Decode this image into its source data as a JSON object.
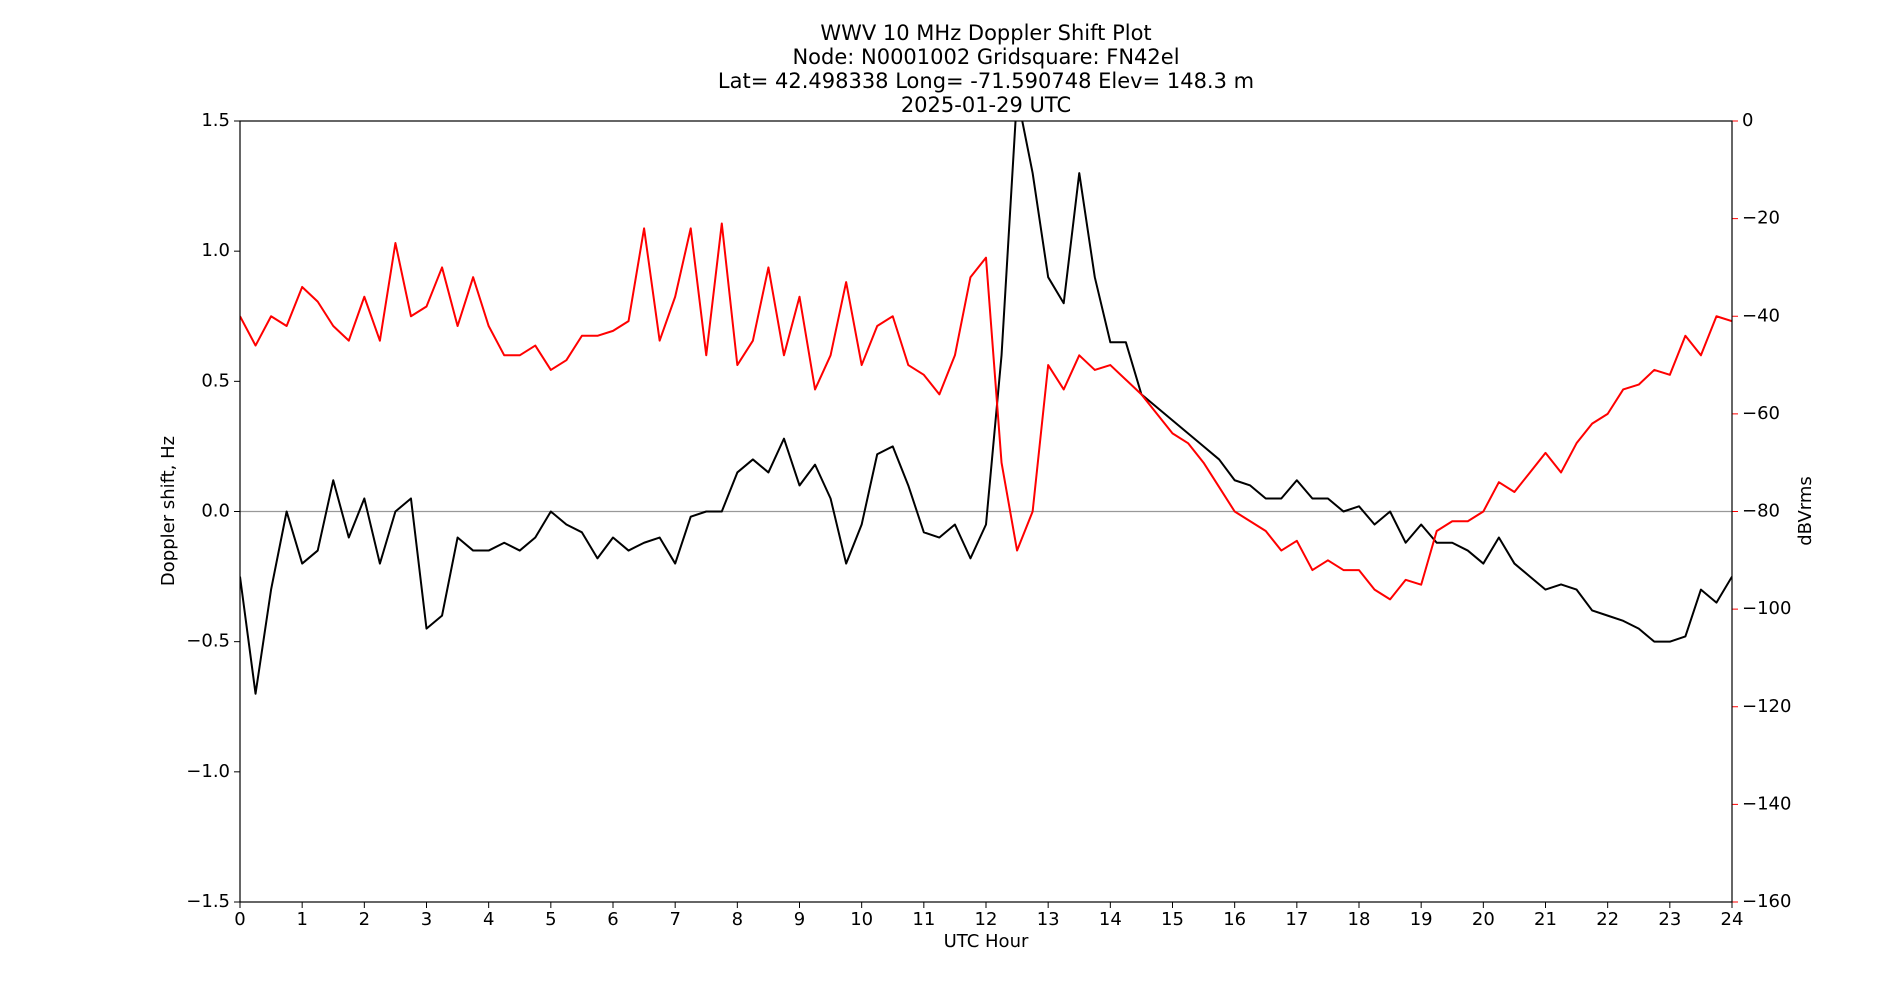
{
  "chart_data": {
    "type": "line",
    "title": "WWV 10 MHz Doppler Shift Plot",
    "subtitle_lines": [
      "Node:  N0001002     Gridsquare:  FN42el",
      "Lat= 42.498338    Long= -71.590748    Elev= 148.3 m",
      "2025-01-29  UTC"
    ],
    "xlabel": "UTC Hour",
    "ylabel": "Doppler shift, Hz",
    "y2label": "dBVrms",
    "xlim": [
      0,
      24
    ],
    "xticks": [
      0,
      1,
      2,
      3,
      4,
      5,
      6,
      7,
      8,
      9,
      10,
      11,
      12,
      13,
      14,
      15,
      16,
      17,
      18,
      19,
      20,
      21,
      22,
      23,
      24
    ],
    "ylim": [
      -1.5,
      1.5
    ],
    "yticks": [
      {
        "value": -1.5,
        "label": "−1.5"
      },
      {
        "value": -1.0,
        "label": "−1.0"
      },
      {
        "value": -0.5,
        "label": "−0.5"
      },
      {
        "value": 0,
        "label": "0.0"
      },
      0.5,
      {
        "value": 1.0,
        "label": "1.0"
      },
      1.5
    ],
    "y2lim": [
      -160,
      0
    ],
    "y2ticks": [
      {
        "value": -160,
        "label": "−160"
      },
      {
        "value": -140,
        "label": "−140"
      },
      {
        "value": -120,
        "label": "−120"
      },
      {
        "value": -100,
        "label": "−100"
      },
      {
        "value": -80,
        "label": "−80"
      },
      {
        "value": -60,
        "label": "−60"
      },
      {
        "value": -40,
        "label": "−40"
      },
      {
        "value": -20,
        "label": "−20"
      },
      0
    ],
    "y2color": "#ff0000",
    "reference_line": 0,
    "x": [
      0,
      0.25,
      0.5,
      0.75,
      1,
      1.25,
      1.5,
      1.75,
      2,
      2.25,
      2.5,
      2.75,
      3,
      3.25,
      3.5,
      3.75,
      4,
      4.25,
      4.5,
      4.75,
      5,
      5.25,
      5.5,
      5.75,
      6,
      6.25,
      6.5,
      6.75,
      7,
      7.25,
      7.5,
      7.75,
      8,
      8.25,
      8.5,
      8.75,
      9,
      9.25,
      9.5,
      9.75,
      10,
      10.25,
      10.5,
      10.75,
      11,
      11.25,
      11.5,
      11.75,
      12,
      12.25,
      12.5,
      12.75,
      13,
      13.25,
      13.5,
      13.75,
      14,
      14.25,
      14.5,
      14.75,
      15,
      15.25,
      15.5,
      15.75,
      16,
      16.25,
      16.5,
      16.75,
      17,
      17.25,
      17.5,
      17.75,
      18,
      18.25,
      18.5,
      18.75,
      19,
      19.25,
      19.5,
      19.75,
      20,
      20.25,
      20.5,
      20.75,
      21,
      21.25,
      21.5,
      21.75,
      22,
      22.25,
      22.5,
      22.75,
      23,
      23.25,
      23.5,
      23.75,
      24
    ],
    "series": [
      {
        "name": "Doppler shift",
        "color": "#000000",
        "values": [
          -0.25,
          -0.7,
          -0.3,
          0.0,
          -0.2,
          -0.15,
          0.12,
          -0.1,
          0.05,
          -0.2,
          0.0,
          0.05,
          -0.45,
          -0.4,
          -0.1,
          -0.15,
          -0.15,
          -0.12,
          -0.15,
          -0.1,
          0.0,
          -0.05,
          -0.08,
          -0.18,
          -0.1,
          -0.15,
          -0.12,
          -0.1,
          -0.2,
          -0.02,
          0.0,
          0.0,
          0.15,
          0.2,
          0.15,
          0.28,
          0.1,
          0.18,
          0.05,
          -0.2,
          -0.05,
          0.22,
          0.25,
          0.1,
          -0.08,
          -0.1,
          -0.05,
          -0.18,
          -0.05,
          0.6,
          1.6,
          1.3,
          0.9,
          0.8,
          1.3,
          0.9,
          0.65,
          0.65,
          0.45,
          0.4,
          0.35,
          0.3,
          0.25,
          0.2,
          0.12,
          0.1,
          0.05,
          0.05,
          0.12,
          0.05,
          0.05,
          0.0,
          0.02,
          -0.05,
          0.0,
          -0.12,
          -0.05,
          -0.12,
          -0.12,
          -0.15,
          -0.2,
          -0.1,
          -0.2,
          -0.25,
          -0.3,
          -0.28,
          -0.3,
          -0.38,
          -0.4,
          -0.42,
          -0.45,
          -0.5,
          -0.5,
          -0.48,
          -0.3,
          -0.35,
          -0.25
        ]
      },
      {
        "name": "dBVrms",
        "color": "#ff0000",
        "axis": "y2",
        "values": [
          -40,
          -46,
          -40,
          -42,
          -34,
          -37,
          -42,
          -45,
          -36,
          -45,
          -25,
          -40,
          -38,
          -30,
          -42,
          -32,
          -42,
          -48,
          -48,
          -46,
          -51,
          -49,
          -44,
          -44,
          -43,
          -41,
          -22,
          -45,
          -36,
          -22,
          -48,
          -21,
          -50,
          -45,
          -30,
          -48,
          -36,
          -55,
          -48,
          -33,
          -50,
          -42,
          -40,
          -50,
          -52,
          -56,
          -48,
          -32,
          -28,
          -70,
          -88,
          -80,
          -50,
          -55,
          -48,
          -51,
          -50,
          -53,
          -56,
          -60,
          -64,
          -66,
          -70,
          -75,
          -80,
          -82,
          -84,
          -88,
          -86,
          -92,
          -90,
          -92,
          -92,
          -96,
          -98,
          -94,
          -95,
          -84,
          -82,
          -82,
          -80,
          -74,
          -76,
          -72,
          -68,
          -72,
          -66,
          -62,
          -60,
          -55,
          -54,
          -51,
          -52,
          -44,
          -48,
          -40,
          -41
        ]
      }
    ]
  }
}
